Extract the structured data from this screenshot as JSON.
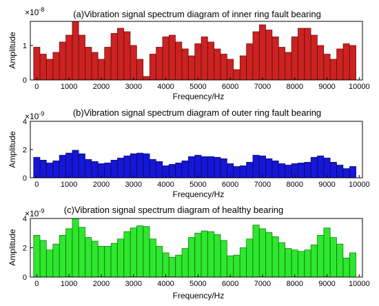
{
  "chart_data": [
    {
      "type": "bar",
      "title": "(a)Vibration signal spectrum diagram of inner ring fault bearing",
      "xlabel": "Frequency/Hz",
      "ylabel": "Amplitude",
      "yexponent": "-8",
      "ylim": [
        0,
        1.7
      ],
      "xlim": [
        -200,
        10100
      ],
      "yticks": [
        "0",
        "1"
      ],
      "ytick_values": [
        0,
        1
      ],
      "xticks": [
        "0",
        "1000",
        "2000",
        "3000",
        "4000",
        "5000",
        "6000",
        "7000",
        "8000",
        "9000",
        "10000"
      ],
      "xtick_values": [
        0,
        1000,
        2000,
        3000,
        4000,
        5000,
        6000,
        7000,
        8000,
        9000,
        10000
      ],
      "bar_width": 195,
      "fill": "#cc2222",
      "edge": "#6e0f0f",
      "x": [
        0,
        200,
        400,
        600,
        800,
        1000,
        1200,
        1400,
        1600,
        1800,
        2000,
        2200,
        2400,
        2600,
        2800,
        3000,
        3200,
        3400,
        3600,
        3800,
        4000,
        4200,
        4400,
        4600,
        4800,
        5000,
        5200,
        5400,
        5600,
        5800,
        6000,
        6200,
        6400,
        6600,
        6800,
        7000,
        7200,
        7400,
        7600,
        7800,
        8000,
        8200,
        8400,
        8600,
        8800,
        9000,
        9200,
        9400,
        9600,
        9800
      ],
      "values": [
        0.95,
        0.75,
        0.6,
        0.8,
        1.1,
        1.3,
        1.75,
        1.3,
        0.95,
        0.8,
        0.6,
        0.95,
        1.35,
        1.5,
        1.4,
        1.0,
        0.6,
        0.1,
        0.75,
        0.95,
        1.25,
        1.3,
        1.1,
        0.9,
        0.7,
        1.05,
        1.25,
        1.1,
        0.9,
        0.75,
        0.6,
        0.3,
        0.7,
        1.05,
        1.4,
        1.6,
        1.45,
        1.25,
        0.95,
        0.8,
        1.25,
        1.5,
        1.5,
        1.3,
        1.0,
        0.75,
        0.6,
        0.9,
        1.05,
        1.0
      ]
    },
    {
      "type": "bar",
      "title": "(b)Vibration signal spectrum diagram of outer ring fault bearing",
      "xlabel": "Frequency/Hz",
      "ylabel": "Amplitude",
      "yexponent": "-9",
      "ylim": [
        0,
        4
      ],
      "xlim": [
        -200,
        10100
      ],
      "yticks": [
        "0",
        "2",
        "4"
      ],
      "ytick_values": [
        0,
        2,
        4
      ],
      "xticks": [
        "0",
        "1000",
        "2000",
        "3000",
        "4000",
        "5000",
        "6000",
        "7000",
        "8000",
        "9000",
        "10000"
      ],
      "xtick_values": [
        0,
        1000,
        2000,
        3000,
        4000,
        5000,
        6000,
        7000,
        8000,
        9000,
        10000
      ],
      "bar_width": 195,
      "fill": "#1616d8",
      "edge": "#0b0b66",
      "x": [
        0,
        200,
        400,
        600,
        800,
        1000,
        1200,
        1400,
        1600,
        1800,
        2000,
        2200,
        2400,
        2600,
        2800,
        3000,
        3200,
        3400,
        3600,
        3800,
        4000,
        4200,
        4400,
        4600,
        4800,
        5000,
        5200,
        5400,
        5600,
        5800,
        6000,
        6200,
        6400,
        6600,
        6800,
        7000,
        7200,
        7400,
        7600,
        7800,
        8000,
        8200,
        8400,
        8600,
        8800,
        9000,
        9200,
        9400,
        9600,
        9800
      ],
      "values": [
        1.45,
        1.25,
        1.05,
        1.2,
        1.6,
        1.75,
        1.95,
        1.7,
        1.3,
        1.15,
        1.0,
        1.05,
        1.25,
        1.4,
        1.55,
        1.7,
        1.75,
        1.7,
        1.3,
        1.15,
        0.85,
        0.95,
        1.05,
        1.2,
        1.5,
        1.6,
        1.5,
        1.5,
        1.45,
        1.35,
        1.0,
        0.8,
        0.85,
        1.1,
        1.6,
        1.55,
        1.35,
        1.2,
        1.0,
        0.9,
        1.0,
        1.05,
        1.1,
        1.45,
        1.55,
        1.4,
        1.1,
        0.9,
        0.65,
        0.8
      ]
    },
    {
      "type": "bar",
      "title": "(c)Vibration signal spectrum diagram of healthy bearing",
      "xlabel": "Frequency/Hz",
      "ylabel": "Amplitude",
      "yexponent": "-9",
      "ylim": [
        0,
        4
      ],
      "xlim": [
        -200,
        10100
      ],
      "yticks": [
        "0",
        "2",
        "4"
      ],
      "ytick_values": [
        0,
        2,
        4
      ],
      "xticks": [
        "0",
        "1000",
        "2000",
        "3000",
        "4000",
        "5000",
        "6000",
        "7000",
        "8000",
        "9000",
        "10000"
      ],
      "xtick_values": [
        0,
        1000,
        2000,
        3000,
        4000,
        5000,
        6000,
        7000,
        8000,
        9000,
        10000
      ],
      "bar_width": 195,
      "fill": "#2ee82e",
      "edge": "#137a13",
      "x": [
        0,
        200,
        400,
        600,
        800,
        1000,
        1200,
        1400,
        1600,
        1800,
        2000,
        2200,
        2400,
        2600,
        2800,
        3000,
        3200,
        3400,
        3600,
        3800,
        4000,
        4200,
        4400,
        4600,
        4800,
        5000,
        5200,
        5400,
        5600,
        5800,
        6000,
        6200,
        6400,
        6600,
        6800,
        7000,
        7200,
        7400,
        7600,
        7800,
        8000,
        8200,
        8400,
        8600,
        8800,
        9000,
        9200,
        9400,
        9600,
        9800
      ],
      "values": [
        2.85,
        2.5,
        1.85,
        2.25,
        2.85,
        3.3,
        4.05,
        3.4,
        2.7,
        2.45,
        2.1,
        2.1,
        2.3,
        2.6,
        3.1,
        3.35,
        3.5,
        3.45,
        2.6,
        2.1,
        1.65,
        1.35,
        1.5,
        1.95,
        2.7,
        3.0,
        3.15,
        3.1,
        2.9,
        2.5,
        1.45,
        1.5,
        2.0,
        2.6,
        3.55,
        3.3,
        3.05,
        2.75,
        2.35,
        1.95,
        1.85,
        1.75,
        1.85,
        2.2,
        2.85,
        3.35,
        2.7,
        2.25,
        1.3,
        1.65
      ]
    }
  ]
}
